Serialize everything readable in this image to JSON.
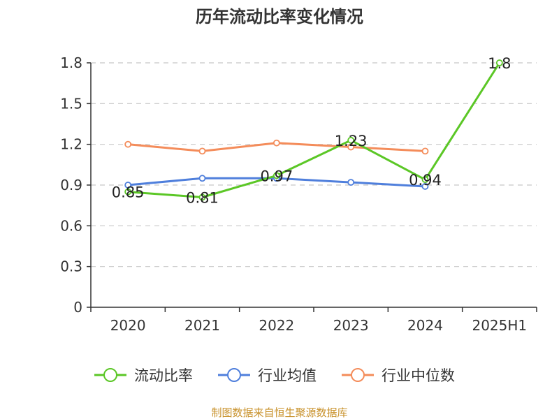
{
  "chart_data": {
    "type": "line",
    "title": "历年流动比率变化情况",
    "categories": [
      "2020",
      "2021",
      "2022",
      "2023",
      "2024",
      "2025H1"
    ],
    "yticks": [
      "0",
      "0.3",
      "0.6",
      "0.9",
      "1.2",
      "1.5",
      "1.8"
    ],
    "ylim": [
      0,
      1.8
    ],
    "grid": true,
    "legend_position": "bottom",
    "series": [
      {
        "name": "流动比率",
        "color": "#5bc726",
        "values": [
          0.85,
          0.81,
          0.97,
          1.23,
          0.94,
          1.8
        ],
        "labels": [
          "0.85",
          "0.81",
          "0.97",
          "1.23",
          "0.94",
          "1.8"
        ]
      },
      {
        "name": "行业均值",
        "color": "#4f7fdc",
        "values": [
          0.9,
          0.95,
          0.95,
          0.92,
          0.89,
          null
        ]
      },
      {
        "name": "行业中位数",
        "color": "#f48c5a",
        "values": [
          1.2,
          1.15,
          1.21,
          1.18,
          1.15,
          null
        ]
      }
    ]
  },
  "source": "制图数据来自恒生聚源数据库"
}
